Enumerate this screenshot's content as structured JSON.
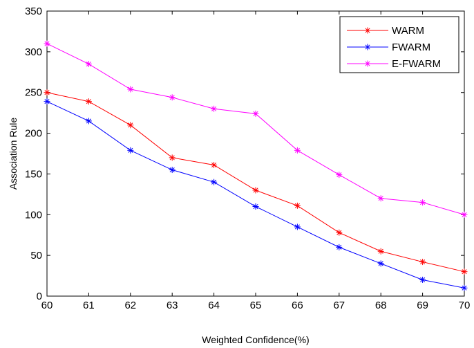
{
  "chart_data": {
    "type": "line",
    "xlabel": "Weighted Confidence(%)",
    "ylabel": "Association Rule",
    "x": [
      60,
      61,
      62,
      63,
      64,
      65,
      66,
      67,
      68,
      69,
      70
    ],
    "xlim": [
      60,
      70
    ],
    "ylim": [
      0,
      350
    ],
    "xticks": [
      "60",
      "61",
      "62",
      "63",
      "64",
      "65",
      "66",
      "67",
      "68",
      "69",
      "70"
    ],
    "yticks": [
      "0",
      "50",
      "100",
      "150",
      "200",
      "250",
      "300",
      "350"
    ],
    "grid": false,
    "legend_position": "top-right",
    "series": [
      {
        "name": "WARM",
        "color": "#ff0000",
        "marker": "asterisk",
        "values": [
          250,
          239,
          210,
          170,
          161,
          130,
          111,
          78,
          55,
          42,
          30
        ]
      },
      {
        "name": "FWARM",
        "color": "#0000ff",
        "marker": "asterisk",
        "values": [
          239,
          215,
          179,
          155,
          140,
          110,
          85,
          60,
          40,
          20,
          10
        ]
      },
      {
        "name": "E-FWARM",
        "color": "#ff00ff",
        "marker": "asterisk",
        "values": [
          310,
          285,
          254,
          244,
          230,
          224,
          179,
          149,
          120,
          115,
          100
        ]
      }
    ]
  }
}
